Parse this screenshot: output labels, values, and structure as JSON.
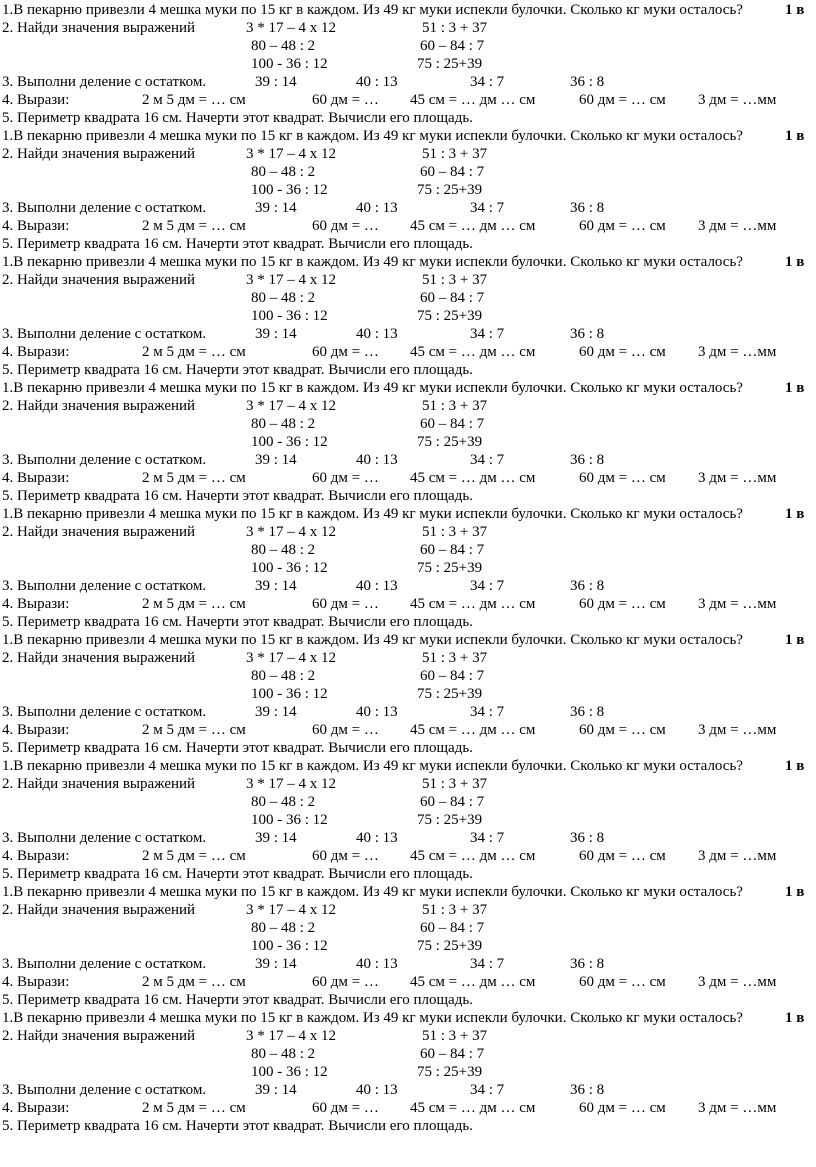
{
  "blocks": [
    {
      "q1": "1.В пекарню привезли 4 мешка муки по 15 кг в каждом. Из 49 кг муки испекли булочки. Сколько кг муки осталось?",
      "variant": "1 в",
      "q2_label": "2. Найди значения выражений",
      "q2_exprs": [
        "3 * 17 – 4 х 12",
        "51 : 3 + 37",
        "80 – 48 : 2",
        "60 – 84 : 7",
        "100 - 36 : 12",
        "75 : 25+39"
      ],
      "q3_label": "3. Выполни деление с остатком.",
      "q3_items": [
        "39 : 14",
        "40 : 13",
        "34 : 7",
        "36 : 8"
      ],
      "q4_label": "4. Вырази:",
      "q4_items": [
        "2 м 5 дм = … см",
        "60 дм = …",
        "45 см = … дм … см",
        "60 дм = … см",
        "3 дм = …мм"
      ],
      "q5": "5. Периметр квадрата 16 см. Начерти этот квадрат. Вычисли его площадь."
    },
    {
      "q1": "1.В пекарню привезли 4 мешка муки по 15 кг в каждом. Из 49 кг муки испекли булочки. Сколько кг муки осталось?",
      "variant": "1 в",
      "q2_label": "2. Найди значения выражений",
      "q2_exprs": [
        "3 * 17 – 4 х 12",
        "51 : 3 + 37",
        "80 – 48 : 2",
        "60 – 84 : 7",
        "100 - 36 : 12",
        "75 : 25+39"
      ],
      "q3_label": "3. Выполни деление с остатком.",
      "q3_items": [
        "39 : 14",
        "40 : 13",
        "34 : 7",
        "36 : 8"
      ],
      "q4_label": "4. Вырази:",
      "q4_items": [
        "2 м 5 дм = … см",
        "60 дм = …",
        "45 см = … дм … см",
        "60 дм = … см",
        "3 дм = …мм"
      ],
      "q5": "5. Периметр квадрата 16 см. Начерти этот квадрат. Вычисли его площадь."
    },
    {
      "q1": "1.В пекарню привезли 4 мешка муки по 15 кг в каждом. Из 49 кг муки испекли булочки. Сколько кг муки осталось?",
      "variant": "1 в",
      "q2_label": "2. Найди значения выражений",
      "q2_exprs": [
        "3 * 17 – 4 х 12",
        "51 : 3 + 37",
        "80 – 48 : 2",
        "60 – 84 : 7",
        "100 - 36 : 12",
        "75 : 25+39"
      ],
      "q3_label": "3. Выполни деление с остатком.",
      "q3_items": [
        "39 : 14",
        "40 : 13",
        "34 : 7",
        "36 : 8"
      ],
      "q4_label": "4. Вырази:",
      "q4_items": [
        "2 м 5 дм = … см",
        "60 дм = …",
        "45 см = … дм … см",
        "60 дм = … см",
        "3 дм = …мм"
      ],
      "q5": "5. Периметр квадрата 16 см. Начерти этот квадрат. Вычисли его площадь."
    },
    {
      "q1": "1.В пекарню привезли 4 мешка муки по 15 кг в каждом. Из 49 кг муки испекли булочки. Сколько кг муки осталось?",
      "variant": "1 в",
      "q2_label": "2. Найди значения выражений",
      "q2_exprs": [
        "3 * 17 – 4 х 12",
        "51 : 3 + 37",
        "80 – 48 : 2",
        "60 – 84 : 7",
        "100 - 36 : 12",
        "75 : 25+39"
      ],
      "q3_label": "3. Выполни деление с остатком.",
      "q3_items": [
        "39 : 14",
        "40 : 13",
        "34 : 7",
        "36 : 8"
      ],
      "q4_label": "4. Вырази:",
      "q4_items": [
        "2 м 5 дм = … см",
        "60 дм = …",
        "45 см = … дм … см",
        "60 дм = … см",
        "3 дм = …мм"
      ],
      "q5": "5. Периметр квадрата 16 см. Начерти этот квадрат. Вычисли его площадь."
    },
    {
      "q1": "1.В пекарню привезли 4 мешка муки по 15 кг в каждом. Из 49 кг муки испекли булочки. Сколько кг муки осталось?",
      "variant": "1 в",
      "q2_label": "2. Найди значения выражений",
      "q2_exprs": [
        "3 * 17 – 4 х 12",
        "51 : 3 + 37",
        "80 – 48 : 2",
        "60 – 84 : 7",
        "100 - 36 : 12",
        "75 : 25+39"
      ],
      "q3_label": "3. Выполни деление с остатком.",
      "q3_items": [
        "39 : 14",
        "40 : 13",
        "34 : 7",
        "36 : 8"
      ],
      "q4_label": "4. Вырази:",
      "q4_items": [
        "2 м 5 дм = … см",
        "60 дм = …",
        "45 см = … дм … см",
        "60 дм = … см",
        "3 дм = …мм"
      ],
      "q5": "5. Периметр квадрата 16 см. Начерти этот квадрат. Вычисли его площадь."
    },
    {
      "q1": "1.В пекарню привезли 4 мешка муки по 15 кг в каждом. Из 49 кг муки испекли булочки. Сколько кг муки осталось?",
      "variant": "1 в",
      "q2_label": "2. Найди значения выражений",
      "q2_exprs": [
        "3 * 17 – 4 х 12",
        "51 : 3 + 37",
        "80 – 48 : 2",
        "60 – 84 : 7",
        "100 - 36 : 12",
        "75 : 25+39"
      ],
      "q3_label": "3. Выполни деление с остатком.",
      "q3_items": [
        "39 : 14",
        "40 : 13",
        "34 : 7",
        "36 : 8"
      ],
      "q4_label": "4. Вырази:",
      "q4_items": [
        "2 м 5 дм = … см",
        "60 дм = …",
        "45 см = … дм … см",
        "60 дм = … см",
        "3 дм = …мм"
      ],
      "q5": "5. Периметр квадрата 16 см. Начерти этот квадрат. Вычисли его площадь."
    },
    {
      "q1": "1.В пекарню привезли 4 мешка муки по 15 кг в каждом. Из 49 кг муки испекли булочки. Сколько кг муки осталось?",
      "variant": "1 в",
      "q2_label": "2. Найди значения выражений",
      "q2_exprs": [
        "3 * 17 – 4 х 12",
        "51 : 3 + 37",
        "80 – 48 : 2",
        "60 – 84 : 7",
        "100 - 36 : 12",
        "75 : 25+39"
      ],
      "q3_label": "3. Выполни деление с остатком.",
      "q3_items": [
        "39 : 14",
        "40 : 13",
        "34 : 7",
        "36 : 8"
      ],
      "q4_label": "4. Вырази:",
      "q4_items": [
        "2 м 5 дм = … см",
        "60 дм = …",
        "45 см = … дм … см",
        "60 дм = … см",
        "3 дм = …мм"
      ],
      "q5": "5. Периметр квадрата 16 см. Начерти этот квадрат. Вычисли его площадь."
    },
    {
      "q1": "1.В пекарню привезли 4 мешка муки по 15 кг в каждом. Из 49 кг муки испекли булочки. Сколько кг муки осталось?",
      "variant": "1 в",
      "q2_label": "2. Найди значения выражений",
      "q2_exprs": [
        "3 * 17 – 4 х 12",
        "51 : 3 + 37",
        "80 – 48 : 2",
        "60 – 84 : 7",
        "100 - 36 : 12",
        "75 : 25+39"
      ],
      "q3_label": "3. Выполни деление с остатком.",
      "q3_items": [
        "39 : 14",
        "40 : 13",
        "34 : 7",
        "36 : 8"
      ],
      "q4_label": "4. Вырази:",
      "q4_items": [
        "2 м 5 дм = … см",
        "60 дм = …",
        "45 см = … дм … см",
        "60 дм = … см",
        "3 дм = …мм"
      ],
      "q5": "5. Периметр квадрата 16 см. Начерти этот квадрат. Вычисли его площадь."
    },
    {
      "q1": "1.В пекарню привезли 4 мешка муки по 15 кг в каждом. Из 49 кг муки испекли булочки. Сколько кг муки осталось?",
      "variant": "1 в",
      "q2_label": "2. Найди значения выражений",
      "q2_exprs": [
        "3 * 17 – 4 х 12",
        "51 : 3 + 37",
        "80 – 48 : 2",
        "60 – 84 : 7",
        "100 - 36 : 12",
        "75 : 25+39"
      ],
      "q3_label": "3. Выполни деление с остатком.",
      "q3_items": [
        "39 : 14",
        "40 : 13",
        "34 : 7",
        "36 : 8"
      ],
      "q4_label": "4. Вырази:",
      "q4_items": [
        "2 м 5 дм = … см",
        "60 дм = …",
        "45 см = … дм … см",
        "60 дм = … см",
        "3 дм = …мм"
      ],
      "q5": "5. Периметр квадрата 16 см. Начерти этот квадрат. Вычисли его площадь."
    }
  ]
}
